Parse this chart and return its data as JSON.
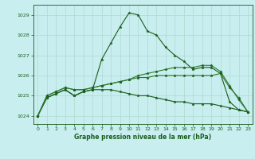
{
  "title": "Graphe pression niveau de la mer (hPa)",
  "bg_color": "#c8eef0",
  "grid_color": "#b0d8d0",
  "line_color_dark": "#1a5c1a",
  "line_color_light": "#2d7a2d",
  "xlim": [
    -0.5,
    23.5
  ],
  "ylim": [
    1023.6,
    1029.5
  ],
  "yticks": [
    1024,
    1025,
    1026,
    1027,
    1028,
    1029
  ],
  "xticks": [
    0,
    1,
    2,
    3,
    4,
    5,
    6,
    7,
    8,
    9,
    10,
    11,
    12,
    13,
    14,
    15,
    16,
    17,
    18,
    19,
    20,
    21,
    22,
    23
  ],
  "series1": [
    1024.0,
    1024.9,
    1025.1,
    1025.3,
    1025.0,
    1025.2,
    1025.3,
    1026.8,
    1027.6,
    1028.4,
    1029.1,
    1029.0,
    1028.2,
    1028.0,
    1027.4,
    1027.0,
    1026.7,
    1026.3,
    1026.4,
    1026.4,
    1026.1,
    1024.7,
    1024.3,
    1024.2
  ],
  "series2": [
    1024.0,
    1024.9,
    1025.1,
    1025.3,
    1025.0,
    1025.2,
    1025.3,
    1025.3,
    1025.3,
    1025.2,
    1025.1,
    1025.0,
    1025.0,
    1024.9,
    1024.8,
    1024.7,
    1024.7,
    1024.6,
    1024.6,
    1024.6,
    1024.5,
    1024.4,
    1024.3,
    1024.2
  ],
  "series3": [
    1024.0,
    1025.0,
    1025.2,
    1025.4,
    1025.3,
    1025.3,
    1025.4,
    1025.5,
    1025.6,
    1025.7,
    1025.8,
    1026.0,
    1026.1,
    1026.2,
    1026.3,
    1026.4,
    1026.4,
    1026.4,
    1026.5,
    1026.5,
    1026.2,
    1025.5,
    1024.8,
    1024.2
  ],
  "series4": [
    1024.0,
    1025.0,
    1025.2,
    1025.4,
    1025.3,
    1025.3,
    1025.4,
    1025.5,
    1025.6,
    1025.7,
    1025.8,
    1025.9,
    1025.9,
    1026.0,
    1026.0,
    1026.0,
    1026.0,
    1026.0,
    1026.0,
    1026.0,
    1026.1,
    1025.4,
    1024.9,
    1024.2
  ]
}
